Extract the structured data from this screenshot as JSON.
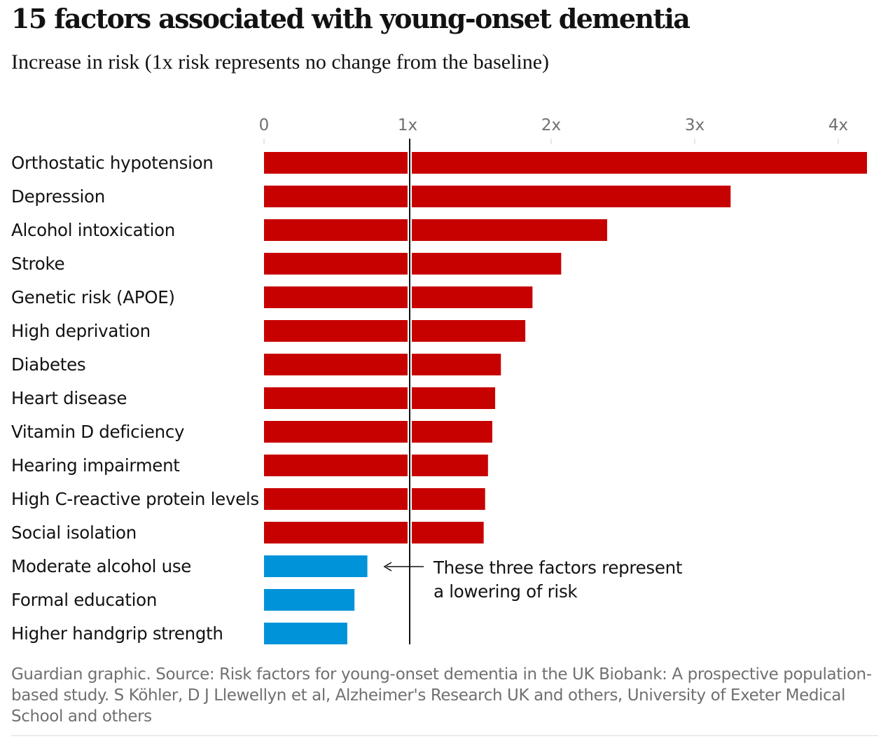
{
  "chart_data": {
    "type": "bar",
    "orientation": "horizontal",
    "title": "15 factors associated with young-onset dementia",
    "subtitle": "Increase in risk (1x risk represents no change from the baseline)",
    "categories": [
      "Orthostatic hypotension",
      "Depression",
      "Alcohol intoxication",
      "Stroke",
      "Genetic risk (APOE)",
      "High deprivation",
      "Diabetes",
      "Heart disease",
      "Vitamin D deficiency",
      "Hearing impairment",
      "High C-reactive protein levels",
      "Social isolation",
      "Moderate alcohol use",
      "Formal education",
      "Higher handgrip strength"
    ],
    "values": [
      4.2,
      3.25,
      2.39,
      2.07,
      1.87,
      1.82,
      1.65,
      1.61,
      1.59,
      1.56,
      1.54,
      1.53,
      0.72,
      0.63,
      0.58
    ],
    "xlim": [
      0,
      4.2
    ],
    "xticks": [
      0,
      1,
      2,
      3,
      4
    ],
    "xtick_labels": [
      "0",
      "1x",
      "2x",
      "3x",
      "4x"
    ],
    "reference_line": 1,
    "colors": {
      "increase": "#c70000",
      "decrease": "#0093d9"
    },
    "annotation": {
      "lines": [
        "These three factors represent",
        "a lowering of risk"
      ]
    },
    "source": "Guardian graphic. Source: Risk factors for young-onset dementia in the UK Biobank: A prospective population-based study. S Köhler, D J Llewellyn et al, Alzheimer's Research UK and others, University of Exeter Medical School and others"
  }
}
